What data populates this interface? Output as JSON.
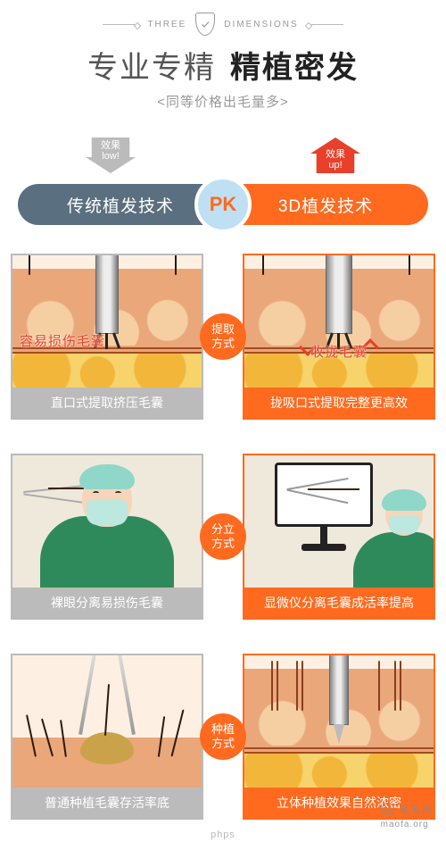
{
  "badge": {
    "left": "THREE",
    "right": "DIMENSIONS"
  },
  "title": {
    "light": "专业专精",
    "bold": "精植密发"
  },
  "subtitle": "<同等价格出毛量多>",
  "effect": {
    "low_line1": "效果",
    "low_line2": "low!",
    "up_line1": "效果",
    "up_line2": "up!"
  },
  "pill": {
    "left": "传统植发技术",
    "pk": "PK",
    "right": "3D植发技术"
  },
  "rows": [
    {
      "label": "提取\n方式",
      "left": {
        "caption": "直口式提取挤压毛囊",
        "inner": "容易损伤毛囊"
      },
      "right": {
        "caption": "拢吸口式提取完整更高效",
        "inner": "收拢毛囊"
      }
    },
    {
      "label": "分立\n方式",
      "left": {
        "caption": "裸眼分离易损伤毛囊"
      },
      "right": {
        "caption": "显微仪分离毛囊成活率提高"
      }
    },
    {
      "label": "种植\n方式",
      "left": {
        "caption": "普通种植毛囊存活率底"
      },
      "right": {
        "caption": "立体种植效果自然浓密"
      }
    }
  ],
  "colors": {
    "orange": "#ff6a1f",
    "red": "#e8402a",
    "grey": "#bbbbbb",
    "slate": "#5a6f7f",
    "pk_bg": "#bfe0f3",
    "skin": "#e9a77a",
    "fat": "#f7d36b",
    "scrub": "#2f8a5b",
    "cap": "#8fd7c9"
  },
  "watermark": {
    "brand": "毛毛网",
    "url": "maofa.org",
    "sub": "phps"
  }
}
